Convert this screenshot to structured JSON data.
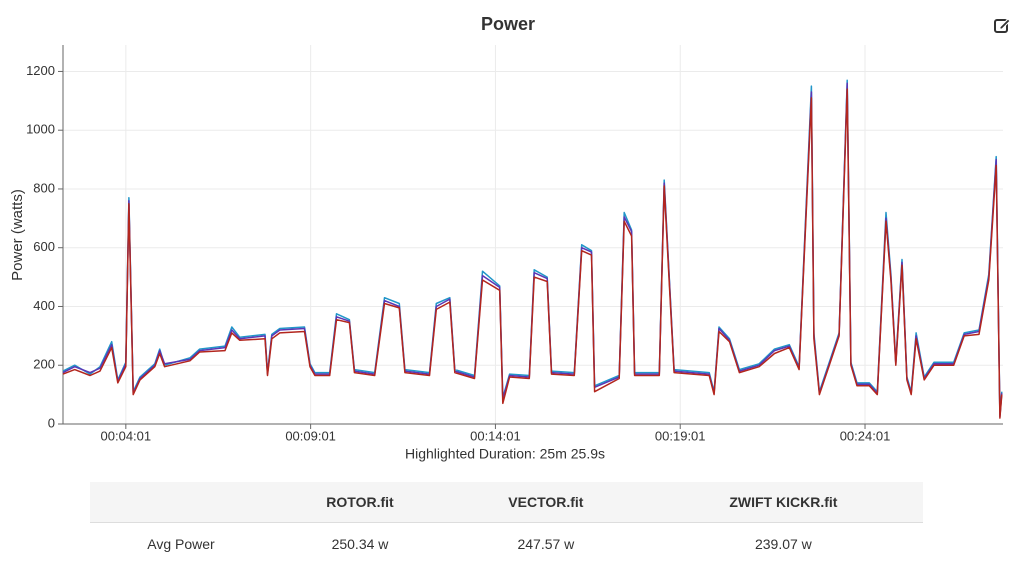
{
  "chart_data": {
    "type": "line",
    "title": "Power",
    "xlabel": "Highlighted Duration: 25m 25.9s",
    "ylabel": "Power (watts)",
    "x": [
      139,
      158,
      183,
      199,
      218,
      228,
      241,
      246,
      253,
      264,
      288,
      296,
      304,
      345,
      361,
      402,
      413,
      426,
      467,
      471,
      478,
      491,
      531,
      540,
      548,
      572,
      583,
      604,
      612,
      645,
      661,
      685,
      694,
      734,
      745,
      767,
      775,
      807,
      820,
      848,
      853,
      864,
      896,
      904,
      925,
      932,
      969,
      981,
      997,
      1002,
      1042,
      1050,
      1062,
      1067,
      1107,
      1115,
      1123,
      1131,
      1188,
      1196,
      1204,
      1221,
      1237,
      1269,
      1294,
      1318,
      1334,
      1354,
      1358,
      1367,
      1383,
      1399,
      1412,
      1418,
      1428,
      1448,
      1461,
      1475,
      1483,
      1491,
      1501,
      1509,
      1516,
      1524,
      1537,
      1553,
      1585,
      1602,
      1626,
      1642,
      1654,
      1660,
      1663
    ],
    "series": [
      {
        "name": "ROTOR.fit",
        "color": "#2196c9",
        "values": [
          180,
          200,
          170,
          195,
          280,
          150,
          210,
          770,
          110,
          160,
          205,
          255,
          200,
          225,
          255,
          265,
          330,
          295,
          305,
          175,
          305,
          325,
          330,
          205,
          175,
          175,
          375,
          355,
          185,
          175,
          430,
          410,
          185,
          175,
          410,
          430,
          185,
          165,
          520,
          470,
          90,
          170,
          165,
          525,
          500,
          180,
          175,
          610,
          590,
          130,
          165,
          720,
          660,
          175,
          175,
          830,
          510,
          185,
          175,
          110,
          330,
          290,
          185,
          205,
          255,
          270,
          195,
          1150,
          310,
          110,
          210,
          310,
          1170,
          210,
          140,
          140,
          110,
          720,
          510,
          210,
          560,
          160,
          110,
          310,
          160,
          210,
          210,
          310,
          320,
          510,
          910,
          30,
          110
        ]
      },
      {
        "name": "VECTOR.fit",
        "color": "#5b36b5",
        "values": [
          175,
          195,
          175,
          190,
          270,
          145,
          205,
          760,
          105,
          155,
          200,
          250,
          205,
          220,
          250,
          260,
          320,
          290,
          300,
          170,
          300,
          320,
          325,
          200,
          170,
          170,
          365,
          350,
          180,
          170,
          420,
          400,
          180,
          170,
          400,
          425,
          180,
          160,
          505,
          465,
          85,
          165,
          160,
          515,
          495,
          175,
          170,
          600,
          585,
          125,
          160,
          705,
          655,
          170,
          170,
          820,
          505,
          180,
          170,
          105,
          325,
          285,
          180,
          200,
          250,
          265,
          190,
          1130,
          300,
          105,
          205,
          305,
          1160,
          205,
          135,
          135,
          105,
          700,
          500,
          205,
          550,
          155,
          105,
          300,
          155,
          205,
          205,
          305,
          315,
          500,
          900,
          25,
          105
        ]
      },
      {
        "name": "ZWIFT KICKR.fit",
        "color": "#b3261e",
        "values": [
          170,
          185,
          165,
          180,
          260,
          140,
          195,
          750,
          100,
          150,
          195,
          240,
          195,
          215,
          245,
          250,
          310,
          285,
          290,
          165,
          290,
          310,
          315,
          195,
          165,
          165,
          355,
          345,
          175,
          165,
          410,
          395,
          175,
          165,
          390,
          415,
          175,
          155,
          490,
          455,
          70,
          160,
          155,
          500,
          485,
          170,
          165,
          590,
          575,
          110,
          155,
          690,
          640,
          165,
          165,
          810,
          490,
          175,
          165,
          100,
          315,
          280,
          175,
          195,
          240,
          260,
          185,
          1110,
          290,
          100,
          200,
          300,
          1140,
          200,
          130,
          130,
          100,
          690,
          490,
          200,
          540,
          150,
          100,
          290,
          150,
          200,
          200,
          300,
          305,
          490,
          880,
          20,
          100
        ]
      }
    ],
    "xlim": [
      139,
      1665
    ],
    "xticks": [
      {
        "value": 241,
        "label": "00:04:01"
      },
      {
        "value": 541,
        "label": "00:09:01"
      },
      {
        "value": 841,
        "label": "00:14:01"
      },
      {
        "value": 1141,
        "label": "00:19:01"
      },
      {
        "value": 1441,
        "label": "00:24:01"
      }
    ],
    "ylim": [
      0,
      1290
    ],
    "yticks": [
      0,
      200,
      400,
      600,
      800,
      1000,
      1200
    ],
    "grid": true
  },
  "table": {
    "rows": [
      {
        "label": "Avg Power",
        "cells": [
          "250.34 w",
          "247.57 w",
          "239.07 w"
        ]
      }
    ]
  }
}
